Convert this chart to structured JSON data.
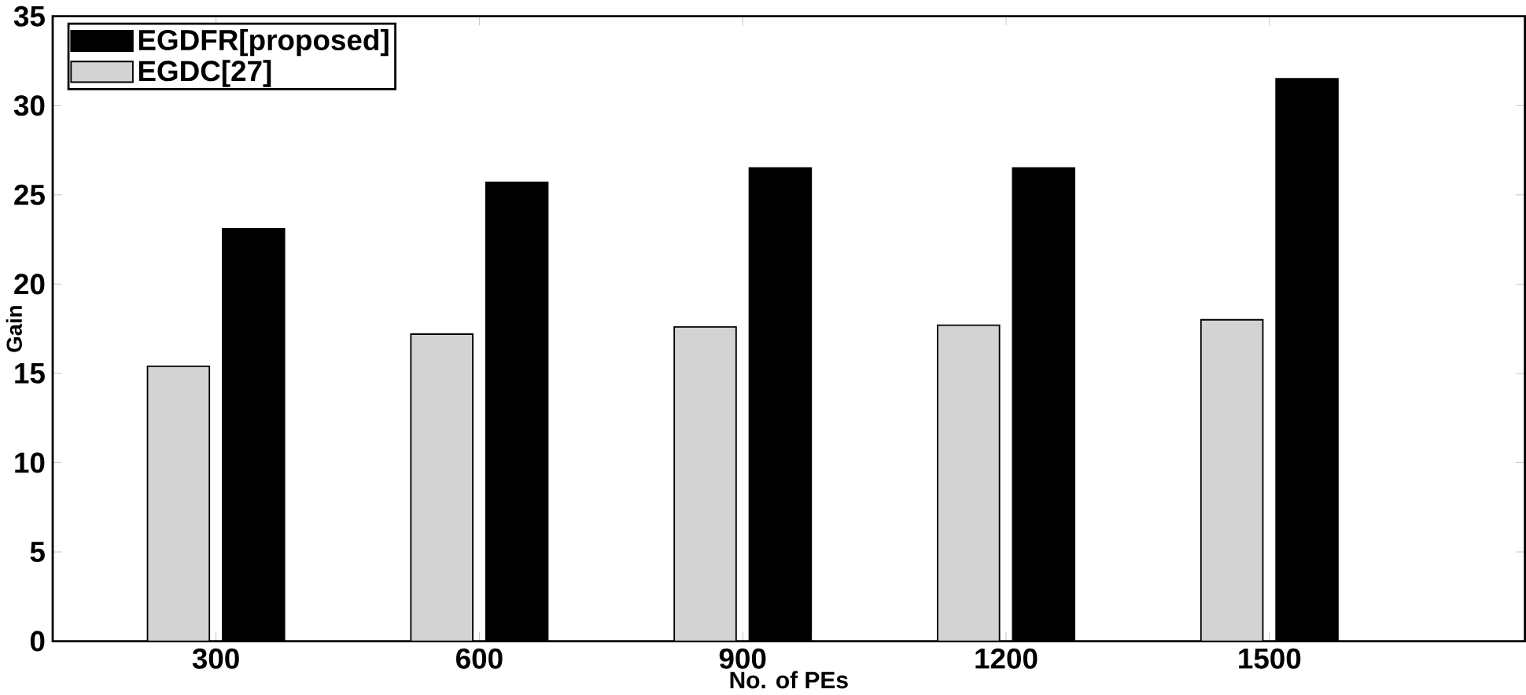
{
  "chart_data": {
    "type": "bar",
    "xlabel": "No. of PEs",
    "ylabel": "Gain",
    "categories": [
      "300",
      "600",
      "900",
      "1200",
      "1500"
    ],
    "series": [
      {
        "name": "EGDC[27]",
        "color": "#d3d3d3",
        "values": [
          15.4,
          17.2,
          17.6,
          17.7,
          18.0
        ]
      },
      {
        "name": "EGDFR[proposed]",
        "color": "#000000",
        "values": [
          23.1,
          25.7,
          26.5,
          26.5,
          31.5
        ]
      }
    ],
    "ylim": [
      0,
      35
    ],
    "yticks": [
      0,
      5,
      10,
      15,
      20,
      25,
      30,
      35
    ],
    "legend": "top left"
  }
}
